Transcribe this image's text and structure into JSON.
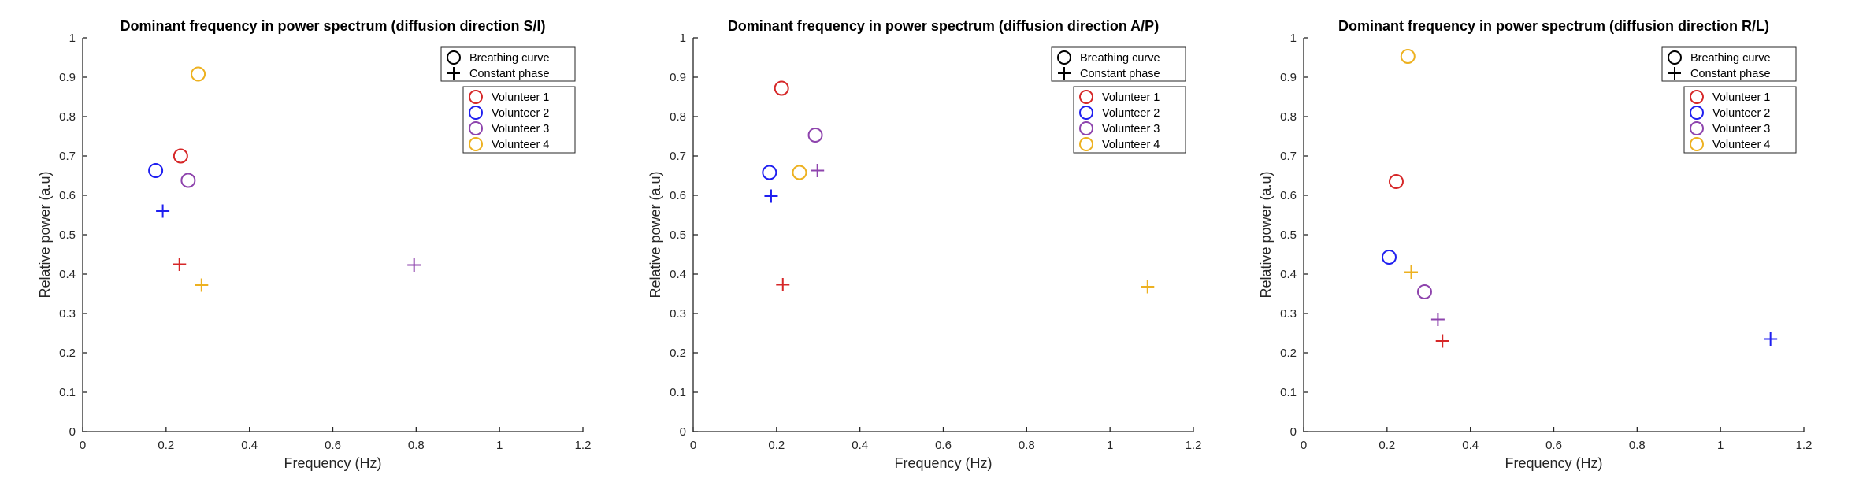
{
  "chart_data": [
    {
      "type": "scatter",
      "title": "Dominant frequency in power spectrum (diffusion direction S/I)",
      "xlabel": "Frequency (Hz)",
      "ylabel": "Relative power (a.u)",
      "xlim": [
        0,
        1.2
      ],
      "ylim": [
        0,
        1
      ],
      "xticks": [
        "0",
        "0.2",
        "0.4",
        "0.6",
        "0.8",
        "1",
        "1.2"
      ],
      "yticks": [
        "0",
        "0.1",
        "0.2",
        "0.3",
        "0.4",
        "0.5",
        "0.6",
        "0.7",
        "0.8",
        "0.9",
        "1"
      ],
      "grid": false,
      "legend_position": "top-right",
      "marker_legend": [
        {
          "name": "Breathing curve",
          "marker": "circle"
        },
        {
          "name": "Constant phase",
          "marker": "plus"
        }
      ],
      "series": [
        {
          "name": "Volunteer 1",
          "color": "#d62728",
          "breathing_curve": {
            "x": 0.235,
            "y": 0.7
          },
          "constant_phase": {
            "x": 0.232,
            "y": 0.425
          }
        },
        {
          "name": "Volunteer 2",
          "color": "#1f1ff0",
          "breathing_curve": {
            "x": 0.175,
            "y": 0.663
          },
          "constant_phase": {
            "x": 0.192,
            "y": 0.56
          }
        },
        {
          "name": "Volunteer 3",
          "color": "#8e44ad",
          "breathing_curve": {
            "x": 0.253,
            "y": 0.638
          },
          "constant_phase": {
            "x": 0.795,
            "y": 0.423
          }
        },
        {
          "name": "Volunteer 4",
          "color": "#edb120",
          "breathing_curve": {
            "x": 0.277,
            "y": 0.908
          },
          "constant_phase": {
            "x": 0.285,
            "y": 0.372
          }
        }
      ]
    },
    {
      "type": "scatter",
      "title": "Dominant frequency in power spectrum (diffusion direction A/P)",
      "xlabel": "Frequency (Hz)",
      "ylabel": "Relative power (a.u)",
      "xlim": [
        0,
        1.2
      ],
      "ylim": [
        0,
        1
      ],
      "xticks": [
        "0",
        "0.2",
        "0.4",
        "0.6",
        "0.8",
        "1",
        "1.2"
      ],
      "yticks": [
        "0",
        "0.1",
        "0.2",
        "0.3",
        "0.4",
        "0.5",
        "0.6",
        "0.7",
        "0.8",
        "0.9",
        "1"
      ],
      "grid": false,
      "legend_position": "top-right",
      "marker_legend": [
        {
          "name": "Breathing curve",
          "marker": "circle"
        },
        {
          "name": "Constant phase",
          "marker": "plus"
        }
      ],
      "series": [
        {
          "name": "Volunteer 1",
          "color": "#d62728",
          "breathing_curve": {
            "x": 0.212,
            "y": 0.872
          },
          "constant_phase": {
            "x": 0.215,
            "y": 0.373
          }
        },
        {
          "name": "Volunteer 2",
          "color": "#1f1ff0",
          "breathing_curve": {
            "x": 0.183,
            "y": 0.658
          },
          "constant_phase": {
            "x": 0.187,
            "y": 0.598
          }
        },
        {
          "name": "Volunteer 3",
          "color": "#8e44ad",
          "breathing_curve": {
            "x": 0.293,
            "y": 0.753
          },
          "constant_phase": {
            "x": 0.298,
            "y": 0.663
          }
        },
        {
          "name": "Volunteer 4",
          "color": "#edb120",
          "breathing_curve": {
            "x": 0.255,
            "y": 0.658
          },
          "constant_phase": {
            "x": 1.09,
            "y": 0.368
          }
        }
      ]
    },
    {
      "type": "scatter",
      "title": "Dominant frequency in power spectrum (diffusion direction R/L)",
      "xlabel": "Frequency (Hz)",
      "ylabel": "Relative power (a.u)",
      "xlim": [
        0,
        1.2
      ],
      "ylim": [
        0,
        1
      ],
      "xticks": [
        "0",
        "0.2",
        "0.4",
        "0.6",
        "0.8",
        "1",
        "1.2"
      ],
      "yticks": [
        "0",
        "0.1",
        "0.2",
        "0.3",
        "0.4",
        "0.5",
        "0.6",
        "0.7",
        "0.8",
        "0.9",
        "1"
      ],
      "grid": false,
      "legend_position": "top-right",
      "marker_legend": [
        {
          "name": "Breathing curve",
          "marker": "circle"
        },
        {
          "name": "Constant phase",
          "marker": "plus"
        }
      ],
      "series": [
        {
          "name": "Volunteer 1",
          "color": "#d62728",
          "breathing_curve": {
            "x": 0.222,
            "y": 0.635
          },
          "constant_phase": {
            "x": 0.333,
            "y": 0.23
          }
        },
        {
          "name": "Volunteer 2",
          "color": "#1f1ff0",
          "breathing_curve": {
            "x": 0.205,
            "y": 0.443
          },
          "constant_phase": {
            "x": 1.12,
            "y": 0.235
          }
        },
        {
          "name": "Volunteer 3",
          "color": "#8e44ad",
          "breathing_curve": {
            "x": 0.29,
            "y": 0.355
          },
          "constant_phase": {
            "x": 0.322,
            "y": 0.285
          }
        },
        {
          "name": "Volunteer 4",
          "color": "#edb120",
          "breathing_curve": {
            "x": 0.25,
            "y": 0.953
          },
          "constant_phase": {
            "x": 0.258,
            "y": 0.405
          }
        }
      ]
    }
  ]
}
